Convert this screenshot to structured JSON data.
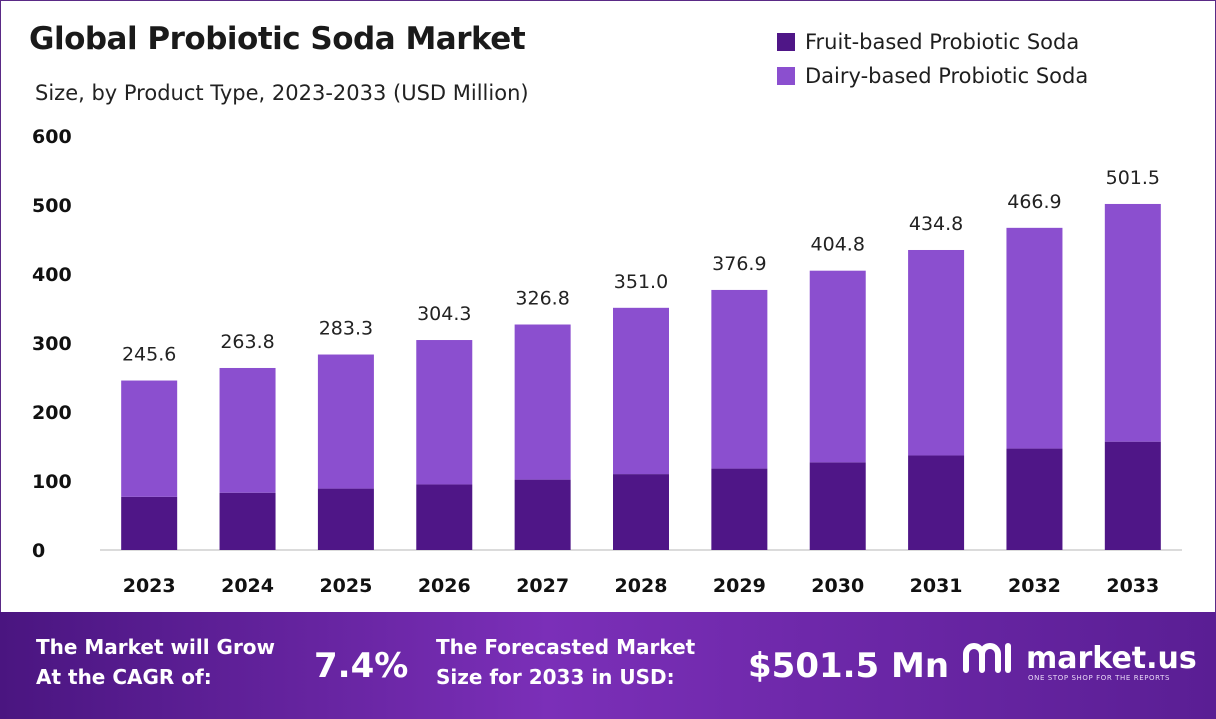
{
  "header": {
    "title": "Global Probiotic Soda Market",
    "subtitle": "Size, by Product Type, 2023-2033 (USD Million)"
  },
  "legend": [
    {
      "label": "Fruit-based Probiotic Soda",
      "color": "#4f1687"
    },
    {
      "label": "Dairy-based Probiotic Soda",
      "color": "#8b4fcf"
    }
  ],
  "chart_data": {
    "type": "bar",
    "stacked": true,
    "categories": [
      "2023",
      "2024",
      "2025",
      "2026",
      "2027",
      "2028",
      "2029",
      "2030",
      "2031",
      "2032",
      "2033"
    ],
    "series": [
      {
        "name": "Fruit-based Probiotic Soda",
        "color": "#4f1687",
        "values": [
          77,
          83,
          89,
          95,
          102,
          110,
          118,
          127,
          137,
          147,
          157
        ]
      },
      {
        "name": "Dairy-based Probiotic Soda",
        "color": "#8b4fcf",
        "values": [
          168.6,
          180.8,
          194.3,
          209.3,
          224.8,
          241.0,
          258.9,
          277.8,
          297.8,
          319.9,
          344.5
        ]
      }
    ],
    "totals": [
      "245.6",
      "263.8",
      "283.3",
      "304.3",
      "326.8",
      "351.0",
      "376.9",
      "404.8",
      "434.8",
      "466.9",
      "501.5"
    ],
    "y_ticks": [
      "0",
      "100",
      "200",
      "300",
      "400",
      "500",
      "600"
    ],
    "ylim": [
      0,
      600
    ],
    "grid": false
  },
  "footer": {
    "cagr_text_line1": "The Market will Grow",
    "cagr_text_line2": "At the CAGR of:",
    "cagr_value": "7.4%",
    "forecast_text_line1": "The Forecasted Market",
    "forecast_text_line2": "Size for 2033 in USD:",
    "forecast_value": "$501.5 Mn",
    "brand_name": "market.us",
    "brand_tagline": "ONE STOP SHOP FOR THE REPORTS"
  }
}
